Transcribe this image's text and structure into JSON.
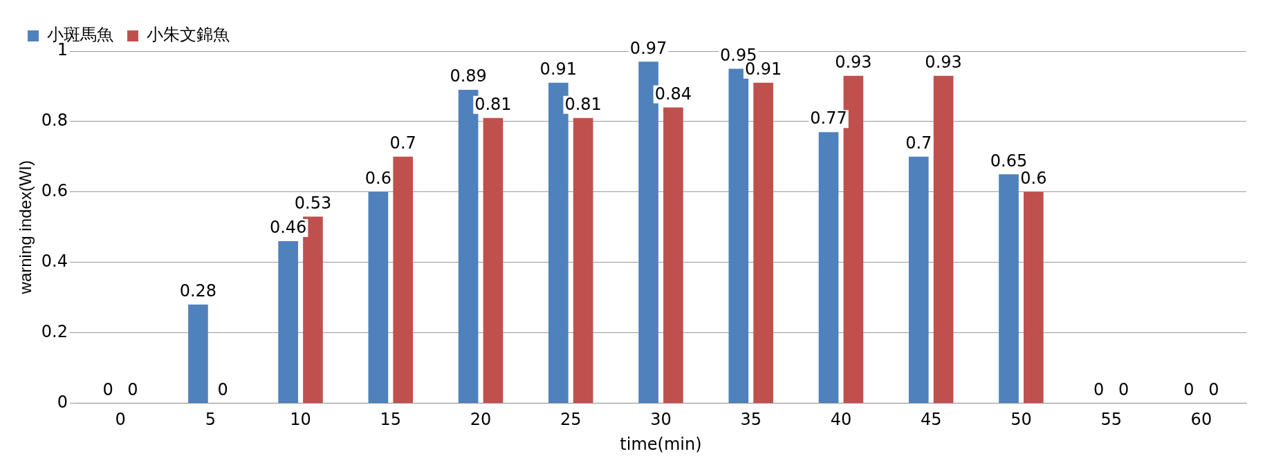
{
  "chart_data": {
    "type": "bar",
    "xlabel": "time(min)",
    "ylabel": "warning index(WI)",
    "categories": [
      "0",
      "5",
      "10",
      "15",
      "20",
      "25",
      "30",
      "35",
      "40",
      "45",
      "50",
      "55",
      "60"
    ],
    "series": [
      {
        "name": "小斑馬魚",
        "color": "#4f81bd",
        "values": [
          0,
          0.28,
          0.46,
          0.6,
          0.89,
          0.91,
          0.97,
          0.95,
          0.77,
          0.7,
          0.65,
          0,
          0
        ]
      },
      {
        "name": "小朱文錦魚",
        "color": "#c0504d",
        "values": [
          0,
          0,
          0.53,
          0.7,
          0.81,
          0.81,
          0.84,
          0.91,
          0.93,
          0.93,
          0.6,
          0,
          0
        ]
      }
    ],
    "ylim": [
      0,
      1
    ],
    "yticks": [
      0,
      0.2,
      0.4,
      0.6,
      0.8,
      1
    ],
    "grid": "y",
    "legend": "top left",
    "data_labels": true
  }
}
